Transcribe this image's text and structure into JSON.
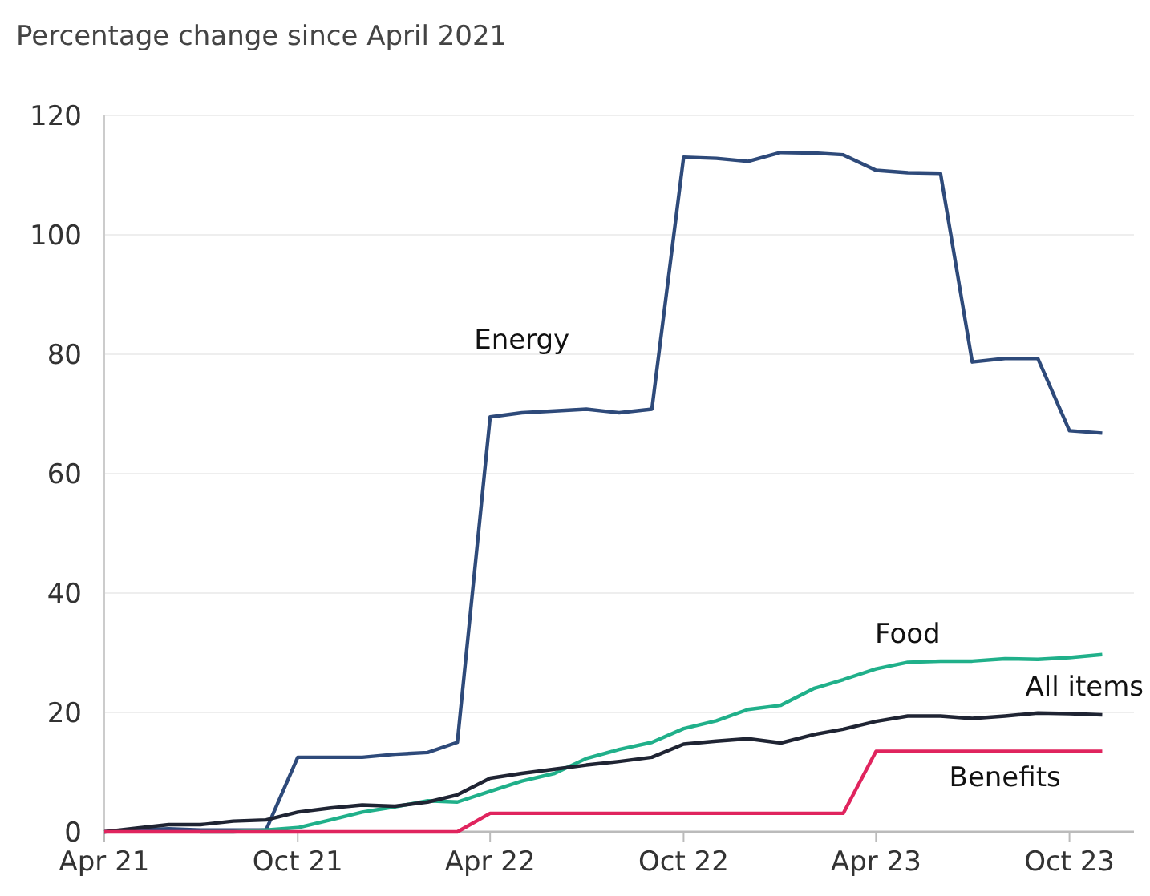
{
  "chart_data": {
    "type": "line",
    "title": "Percentage change since April 2021",
    "x": [
      "2021-04",
      "2021-05",
      "2021-06",
      "2021-07",
      "2021-08",
      "2021-09",
      "2021-10",
      "2021-11",
      "2021-12",
      "2022-01",
      "2022-02",
      "2022-03",
      "2022-04",
      "2022-05",
      "2022-06",
      "2022-07",
      "2022-08",
      "2022-09",
      "2022-10",
      "2022-11",
      "2022-12",
      "2023-01",
      "2023-02",
      "2023-03",
      "2023-04",
      "2023-05",
      "2023-06",
      "2023-07",
      "2023-08",
      "2023-09",
      "2023-10",
      "2023-11"
    ],
    "series": [
      {
        "name": "Energy",
        "color": "#2e4a7a",
        "values": [
          0,
          0.3,
          0.5,
          0.3,
          0.3,
          0.3,
          12.5,
          12.5,
          12.5,
          13,
          13.3,
          15,
          69.5,
          70.2,
          70.5,
          70.8,
          70.2,
          70.8,
          113,
          112.8,
          112.3,
          113.8,
          113.7,
          113.4,
          110.8,
          110.4,
          110.3,
          78.7,
          79.3,
          79.3,
          67.2,
          66.8
        ]
      },
      {
        "name": "Food",
        "color": "#20b08a",
        "values": [
          null,
          null,
          null,
          0,
          0,
          0.3,
          0.7,
          2.0,
          3.3,
          4.2,
          5.2,
          5.0,
          6.8,
          8.5,
          9.8,
          12.3,
          13.8,
          15,
          17.3,
          18.6,
          20.5,
          21.2,
          24,
          25.5,
          27.3,
          28.4,
          28.6,
          28.6,
          29.0,
          28.9,
          29.2,
          29.7
        ]
      },
      {
        "name": "All items",
        "color": "#1f2433",
        "values": [
          0,
          0.6,
          1.2,
          1.2,
          1.8,
          2.0,
          3.3,
          4.0,
          4.5,
          4.3,
          5.0,
          6.2,
          9.0,
          9.8,
          10.5,
          11.2,
          11.8,
          12.5,
          14.7,
          15.2,
          15.6,
          14.9,
          16.3,
          17.2,
          18.5,
          19.4,
          19.4,
          19.0,
          19.4,
          19.9,
          19.8,
          19.6
        ]
      },
      {
        "name": "Benefits",
        "color": "#e0245e",
        "values": [
          0,
          0,
          0,
          0,
          0,
          0,
          0,
          0,
          0,
          0,
          0,
          0,
          3.1,
          3.1,
          3.1,
          3.1,
          3.1,
          3.1,
          3.1,
          3.1,
          3.1,
          3.1,
          3.1,
          3.1,
          13.5,
          13.5,
          13.5,
          13.5,
          13.5,
          13.5,
          13.5,
          13.5
        ]
      }
    ],
    "xlim": [
      "2021-04",
      "2023-12"
    ],
    "xticks": [
      {
        "value": "2021-04",
        "label": "Apr 21"
      },
      {
        "value": "2021-10",
        "label": "Oct 21"
      },
      {
        "value": "2022-04",
        "label": "Apr 22"
      },
      {
        "value": "2022-10",
        "label": "Oct 22"
      },
      {
        "value": "2023-04",
        "label": "Apr 23"
      },
      {
        "value": "2023-10",
        "label": "Oct 23"
      }
    ],
    "ylim": [
      0,
      120
    ],
    "yticks": [
      0,
      20,
      40,
      60,
      80,
      100,
      120
    ],
    "grid": "y",
    "marker": "none",
    "line_style": "solid"
  }
}
